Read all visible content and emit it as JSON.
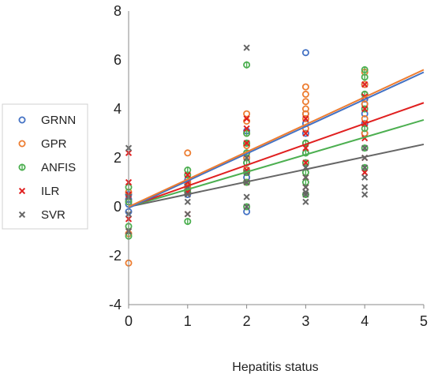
{
  "chart_data": {
    "type": "scatter",
    "title": "",
    "xlabel": "Hepatitis status",
    "ylabel": "",
    "xlim": [
      0,
      5
    ],
    "ylim": [
      -4,
      8
    ],
    "x_ticks": [
      0,
      1,
      2,
      3,
      4,
      5
    ],
    "y_ticks": [
      -4,
      -2,
      0,
      2,
      4,
      6,
      8
    ],
    "grid": false,
    "legend_position": "left",
    "series": [
      {
        "name": "GRNN",
        "marker": "circle",
        "color": "#4472c4",
        "x": [
          0,
          0,
          0,
          0,
          1,
          1,
          1,
          1,
          2,
          2,
          2,
          2,
          2,
          2,
          2,
          3,
          3,
          3,
          3,
          3,
          3,
          4,
          4,
          4,
          4,
          4,
          4,
          4
        ],
        "y": [
          0.1,
          0.3,
          -0.2,
          0.5,
          0.7,
          0.9,
          1.1,
          0.5,
          -0.2,
          1.2,
          1.8,
          2.2,
          2.6,
          3.1,
          1.5,
          6.3,
          2.6,
          3.0,
          3.4,
          3.8,
          2.2,
          3.8,
          4.2,
          4.6,
          5.0,
          3.4,
          4.4,
          3.0
        ],
        "trend": {
          "intercept": -0.05,
          "slope": 1.11
        }
      },
      {
        "name": "GPR",
        "marker": "circle",
        "color": "#ed7d31",
        "x": [
          0,
          0,
          0,
          0,
          1,
          1,
          1,
          1,
          2,
          2,
          2,
          2,
          2,
          2,
          2,
          3,
          3,
          3,
          3,
          3,
          3,
          3,
          3,
          4,
          4,
          4,
          4,
          4,
          4
        ],
        "y": [
          -2.3,
          -1.1,
          0.2,
          0.6,
          2.2,
          1.0,
          0.6,
          0.8,
          3.8,
          3.5,
          2.5,
          2.0,
          1.5,
          1.0,
          3.0,
          4.9,
          4.6,
          4.3,
          4.0,
          3.6,
          3.2,
          2.6,
          3.8,
          5.5,
          5.0,
          4.6,
          4.2,
          3.6,
          3.0
        ],
        "trend": {
          "intercept": 0.0,
          "slope": 1.12
        }
      },
      {
        "name": "ANFIS",
        "marker": "circle-bar",
        "color": "#4caf50",
        "x": [
          0,
          0,
          0,
          0,
          1,
          1,
          1,
          1,
          2,
          2,
          2,
          2,
          2,
          2,
          2,
          2,
          3,
          3,
          3,
          3,
          3,
          3,
          4,
          4,
          4,
          4,
          4,
          4,
          4
        ],
        "y": [
          -1.2,
          -0.8,
          0.2,
          0.8,
          1.5,
          1.3,
          -0.6,
          0.6,
          5.8,
          3.0,
          2.6,
          2.2,
          1.8,
          1.4,
          1.0,
          0.0,
          2.6,
          2.2,
          1.8,
          1.4,
          1.0,
          0.5,
          5.6,
          5.3,
          4.6,
          4.0,
          3.2,
          2.4,
          1.6
        ],
        "trend": {
          "intercept": 0.0,
          "slope": 0.71
        }
      },
      {
        "name": "ILR",
        "marker": "x",
        "color": "#e02020",
        "x": [
          0,
          0,
          0,
          0,
          0,
          1,
          1,
          1,
          1,
          2,
          2,
          2,
          2,
          2,
          2,
          3,
          3,
          3,
          3,
          3,
          3,
          4,
          4,
          4,
          4,
          4,
          4,
          4
        ],
        "y": [
          2.2,
          1.0,
          0.5,
          -0.5,
          -1.0,
          1.3,
          1.0,
          0.6,
          -0.3,
          3.6,
          3.2,
          2.6,
          2.0,
          1.5,
          1.0,
          3.6,
          3.0,
          2.4,
          1.8,
          1.2,
          0.8,
          5.0,
          4.5,
          4.0,
          3.4,
          2.8,
          2.0,
          1.4
        ],
        "trend": {
          "intercept": 0.0,
          "slope": 0.85
        }
      },
      {
        "name": "SVR",
        "marker": "x",
        "color": "#666666",
        "x": [
          0,
          0,
          0,
          0,
          1,
          1,
          1,
          1,
          2,
          2,
          2,
          2,
          2,
          2,
          3,
          3,
          3,
          3,
          3,
          3,
          4,
          4,
          4,
          4,
          4,
          4
        ],
        "y": [
          2.4,
          0.4,
          -0.3,
          -1.0,
          0.8,
          0.5,
          -0.3,
          0.2,
          6.5,
          2.0,
          1.4,
          1.0,
          0.4,
          0.0,
          1.6,
          1.2,
          0.8,
          0.5,
          0.2,
          0.6,
          2.4,
          2.0,
          1.6,
          1.2,
          0.8,
          0.5
        ],
        "trend": {
          "intercept": 0.0,
          "slope": 0.51
        }
      }
    ]
  }
}
